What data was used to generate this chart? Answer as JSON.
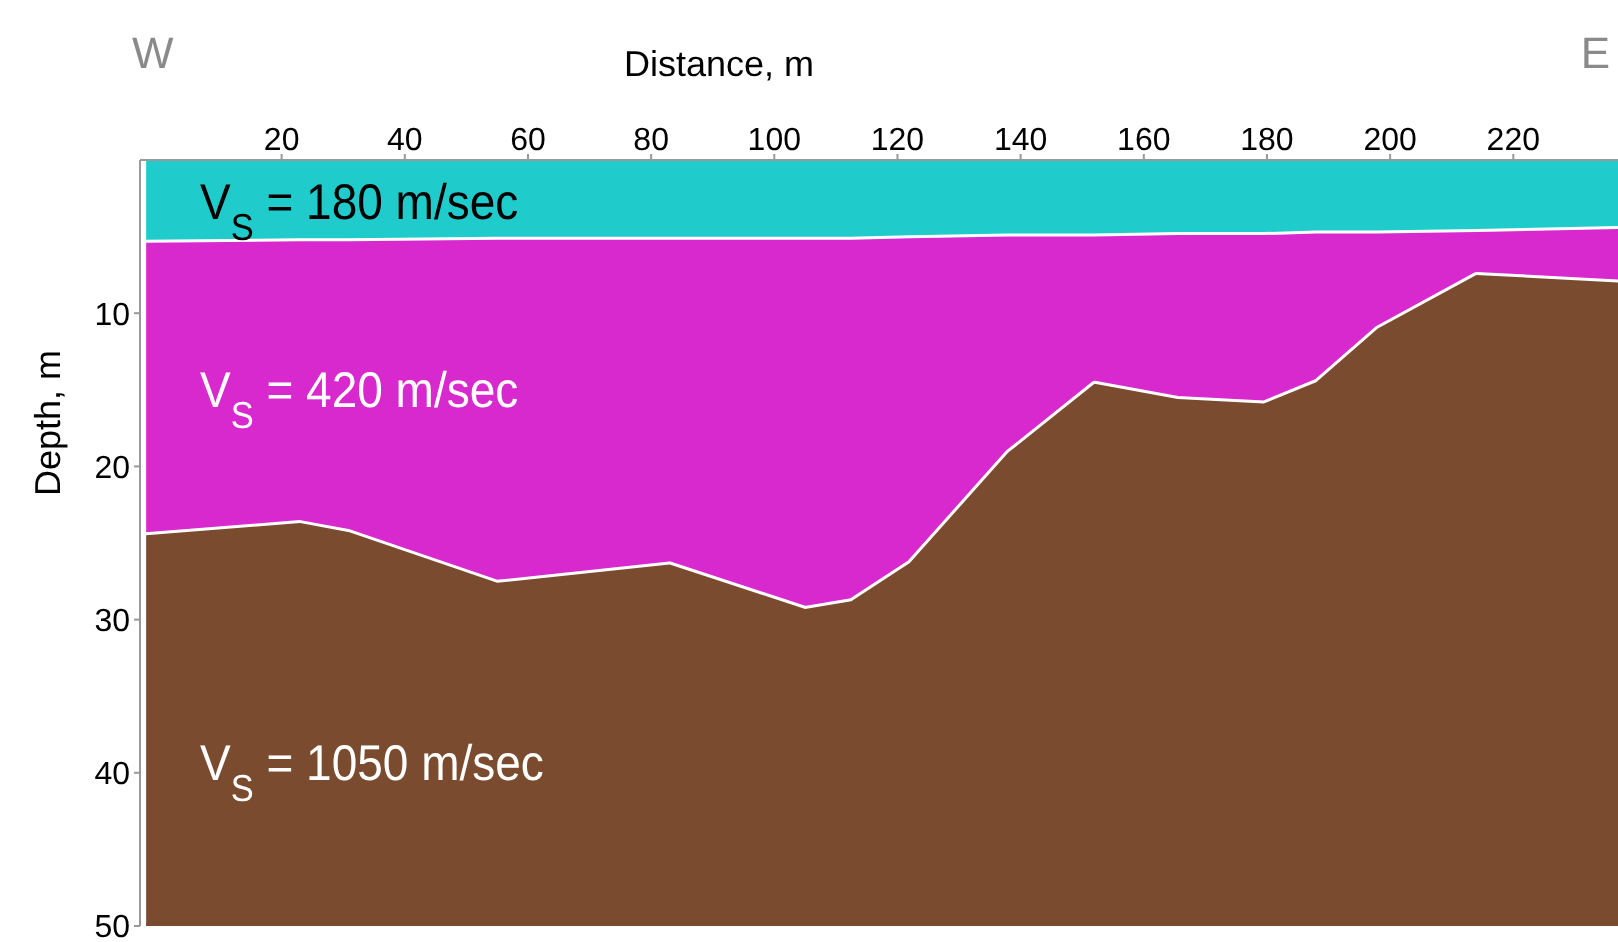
{
  "chart_data": {
    "type": "area",
    "stacked": true,
    "xlabel": "Distance, m",
    "ylabel": "Depth, m",
    "x": [
      -2,
      23,
      31,
      55,
      83,
      105,
      112.5,
      122,
      138,
      152,
      165.5,
      179.5,
      188,
      198,
      214,
      237
    ],
    "series": [
      {
        "color": "#1fcccb",
        "values": [
          5.4,
          5.3,
          5.3,
          5.2,
          5.2,
          5.2,
          5.2,
          5.1,
          5.0,
          5.0,
          4.9,
          4.9,
          4.8,
          4.8,
          4.7,
          4.5
        ]
      },
      {
        "color": "#d829cf",
        "values": [
          19.1,
          18.4,
          19.0,
          22.4,
          21.2,
          24.1,
          23.6,
          21.2,
          14.1,
          9.6,
          10.7,
          11.0,
          9.7,
          6.2,
          2.8,
          3.5
        ]
      },
      {
        "color": "#7b4b2f",
        "values": [
          25.5,
          26.3,
          25.7,
          22.4,
          23.6,
          20.7,
          21.2,
          23.7,
          30.9,
          35.4,
          34.4,
          34.1,
          35.5,
          39,
          42.5,
          42
        ]
      }
    ],
    "xlim": [
      -3,
      237
    ],
    "xticks": [
      20,
      40,
      60,
      80,
      100,
      120,
      140,
      160,
      180,
      200,
      220
    ],
    "ylim": [
      50,
      0
    ],
    "yticks": [
      10,
      20,
      30,
      40,
      50
    ],
    "grid": false,
    "legend": false,
    "annotations": [
      "W",
      "E",
      "V$_{S}$ = 180 m/sec",
      "V$_{S}$ = 420 m/sec",
      "V$_{S}$ = 1050 m/sec"
    ]
  }
}
